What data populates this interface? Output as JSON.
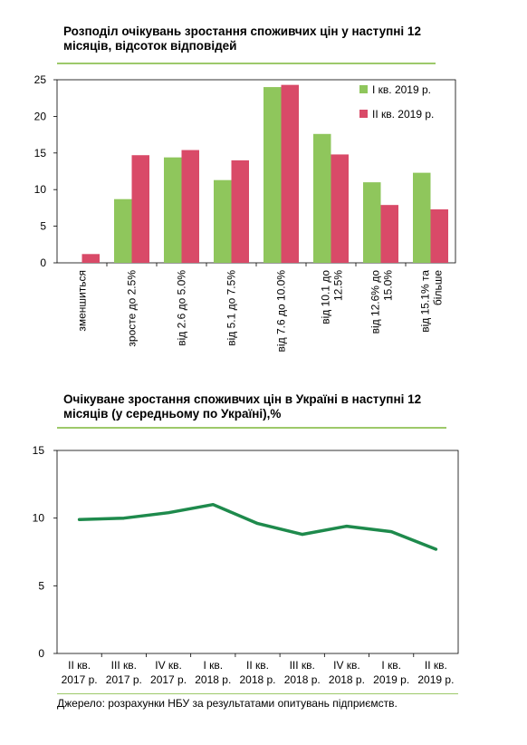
{
  "chart_data": [
    {
      "type": "bar",
      "title": "Розподіл очікувань зростання споживчих цін у наступні 12 місяців, відсоток відповідей",
      "categories": [
        "зменшиться",
        "зросте до 2.5%",
        "від 2.6 до 5.0%",
        "від 5.1 до 7.5%",
        "від 7.6 до 10.0%",
        "від 10.1 до 12.5%",
        "від 12.6% до 15.0%",
        "від 15.1% та більше"
      ],
      "series": [
        {
          "name": "I кв. 2019 р.",
          "color": "#8fc65c",
          "values": [
            0,
            8.7,
            14.4,
            11.3,
            24.0,
            17.6,
            11.0,
            12.3
          ]
        },
        {
          "name": "ІІ кв. 2019 р.",
          "color": "#d94a68",
          "values": [
            1.2,
            14.7,
            15.4,
            14.0,
            24.3,
            14.8,
            7.9,
            7.3
          ]
        }
      ],
      "ylim": [
        0,
        25
      ],
      "yticks": [
        "0",
        "5",
        "10",
        "15",
        "20",
        "25"
      ],
      "legend": "top-right"
    },
    {
      "type": "line",
      "title": "Очікуване зростання споживчих цін в Україні в наступні 12 місяців (у середньому по Україні),%",
      "x": [
        "ІІ кв. 2017 р.",
        "ІІІ кв. 2017 р.",
        "IV кв. 2017 р.",
        "I кв. 2018 р.",
        "ІІ кв. 2018 р.",
        "ІІІ кв. 2018 р.",
        "IV кв. 2018 р.",
        "I кв. 2019 р.",
        "ІІ кв. 2019 р."
      ],
      "series": [
        {
          "color": "#1e8a4c",
          "values": [
            9.9,
            10.0,
            10.4,
            11.0,
            9.6,
            8.8,
            9.4,
            9.0,
            7.7
          ]
        }
      ],
      "ylim": [
        0,
        15
      ],
      "yticks": [
        "0",
        "5",
        "10",
        "15"
      ]
    }
  ],
  "source": "Джерело:  розрахунки   НБУ за результатами опитувань підприємств."
}
